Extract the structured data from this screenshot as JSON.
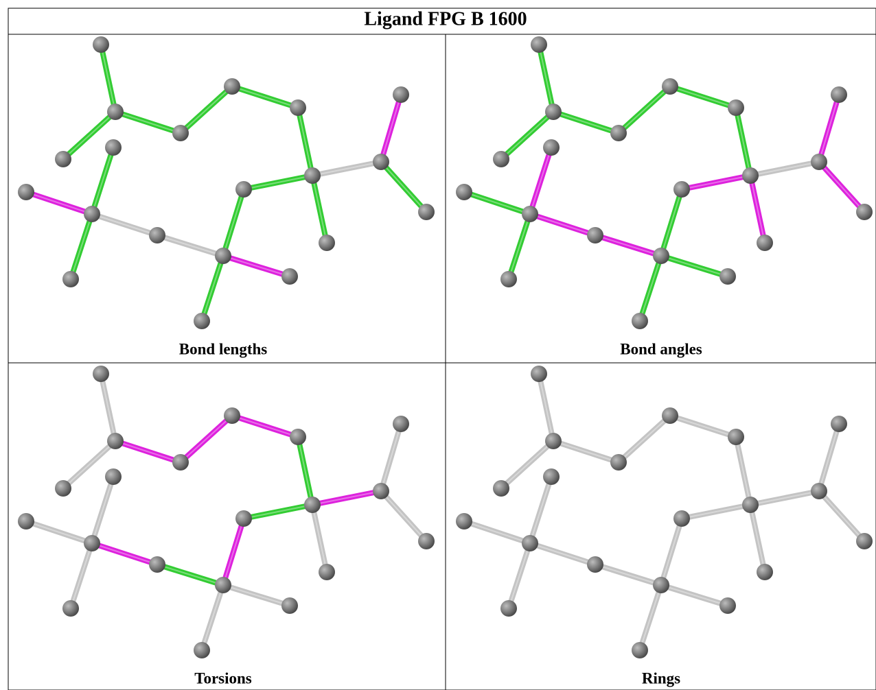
{
  "header": {
    "title": "Ligand FPG B 1600"
  },
  "panels": [
    {
      "caption": "Bond lengths"
    },
    {
      "caption": "Bond angles"
    },
    {
      "caption": "Torsions"
    },
    {
      "caption": "Rings"
    }
  ]
}
